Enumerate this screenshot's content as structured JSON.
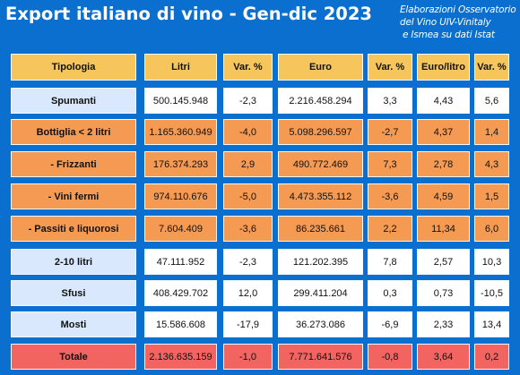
{
  "title": "Export italiano di vino - Gen-dic 2023",
  "source_lines": [
    "Elaborazioni Osservatorio",
    "del Vino UIV-Vinitaly",
    "e Ismea su dati Istat"
  ],
  "colors": {
    "background": "#0b6fd0",
    "header": "#f6c65d",
    "row_blue": "#d9e8fc",
    "row_orange": "#f59a52",
    "row_total": "#f2645f"
  },
  "table": {
    "headers": [
      "Tipologia",
      "Litri",
      "Var. %",
      "Euro",
      "Var. %",
      "Euro/litro",
      "Var. %"
    ],
    "rows": [
      {
        "tipologia": "Spumanti",
        "litri": "500.145.948",
        "var_litri": "-2,3",
        "euro": "2.216.458.294",
        "var_euro": "3,3",
        "euro_litro": "4,43",
        "var_euro_litro": "5,6",
        "style": "blue"
      },
      {
        "tipologia": "Bottiglia < 2 litri",
        "litri": "1.165.360.949",
        "var_litri": "-4,0",
        "euro": "5.098.296.597",
        "var_euro": "-2,7",
        "euro_litro": "4,37",
        "var_euro_litro": "1,4",
        "style": "orange"
      },
      {
        "tipologia": "- Frizzanti",
        "litri": "176.374.293",
        "var_litri": "2,9",
        "euro": "490.772.469",
        "var_euro": "7,3",
        "euro_litro": "2,78",
        "var_euro_litro": "4,3",
        "style": "orange"
      },
      {
        "tipologia": "- Vini fermi",
        "litri": "974.110.676",
        "var_litri": "-5,0",
        "euro": "4.473.355.112",
        "var_euro": "-3,6",
        "euro_litro": "4,59",
        "var_euro_litro": "1,5",
        "style": "orange"
      },
      {
        "tipologia": "- Passiti e liquorosi",
        "litri": "7.604.409",
        "var_litri": "-3,6",
        "euro": "86.235.661",
        "var_euro": "2,2",
        "euro_litro": "11,34",
        "var_euro_litro": "6,0",
        "style": "orange"
      },
      {
        "tipologia": "2-10 litri",
        "litri": "47.111.952",
        "var_litri": "-2,3",
        "euro": "121.202.395",
        "var_euro": "7,8",
        "euro_litro": "2,57",
        "var_euro_litro": "10,3",
        "style": "blue"
      },
      {
        "tipologia": "Sfusi",
        "litri": "408.429.702",
        "var_litri": "12,0",
        "euro": "299.411.204",
        "var_euro": "0,3",
        "euro_litro": "0,73",
        "var_euro_litro": "-10,5",
        "style": "blue"
      },
      {
        "tipologia": "Mosti",
        "litri": "15.586.608",
        "var_litri": "-17,9",
        "euro": "36.273.086",
        "var_euro": "-6,9",
        "euro_litro": "2,33",
        "var_euro_litro": "13,4",
        "style": "blue"
      },
      {
        "tipologia": "Totale",
        "litri": "2.136.635.159",
        "var_litri": "-1,0",
        "euro": "7.771.641.576",
        "var_euro": "-0,8",
        "euro_litro": "3,64",
        "var_euro_litro": "0,2",
        "style": "red"
      }
    ]
  }
}
